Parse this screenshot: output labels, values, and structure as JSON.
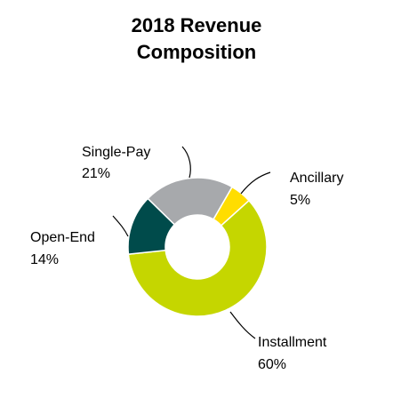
{
  "chart_data": {
    "type": "pie",
    "variant": "donut",
    "title": "2018 Revenue Composition",
    "title_lines": [
      "2018 Revenue",
      "Composition"
    ],
    "slices": [
      {
        "label": "Ancillary",
        "value": 5,
        "value_label": "5%",
        "color": "#FFDD00"
      },
      {
        "label": "Installment",
        "value": 60,
        "value_label": "60%",
        "color": "#C5D600"
      },
      {
        "label": "Open-End",
        "value": 14,
        "value_label": "14%",
        "color": "#004B4B"
      },
      {
        "label": "Single-Pay",
        "value": 21,
        "value_label": "21%",
        "color": "#A7A9AC"
      }
    ],
    "start_angle_deg": 30,
    "direction": "clockwise",
    "legend": "none",
    "labels": "outside-with-leader-lines",
    "slice_border_color": "#ffffff"
  }
}
